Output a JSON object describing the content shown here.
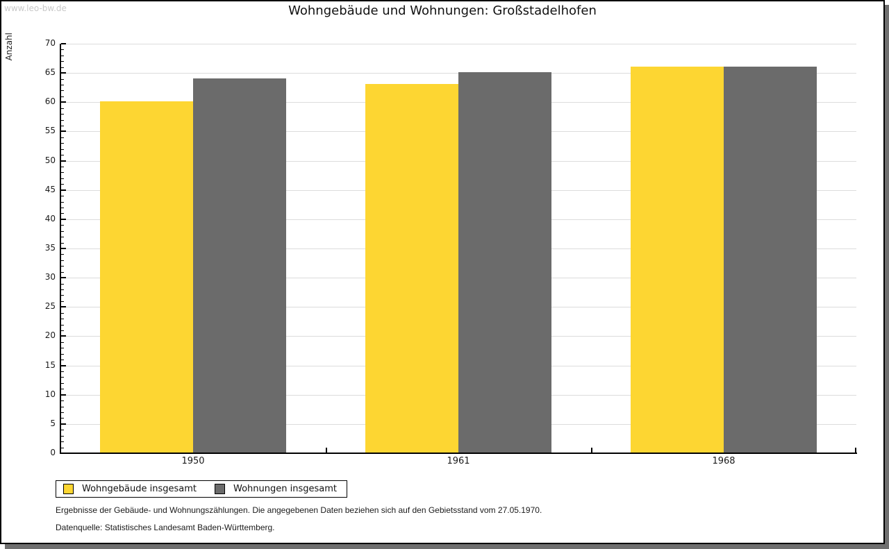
{
  "watermark": "www.leo-bw.de",
  "title": "Wohngebäude und Wohnungen: Großstadelhofen",
  "chart_data": {
    "type": "bar",
    "categories": [
      "1950",
      "1961",
      "1968"
    ],
    "series": [
      {
        "name": "Wohngebäude insgesamt",
        "color": "#FDD632",
        "values": [
          60,
          63,
          66
        ]
      },
      {
        "name": "Wohnungen insgesamt",
        "color": "#6B6B6B",
        "values": [
          64,
          65,
          66
        ]
      }
    ],
    "title": "Wohngebäude und Wohnungen: Großstadelhofen",
    "xlabel": "",
    "ylabel": "Anzahl",
    "ylim": [
      0,
      70
    ],
    "ytick_step": 5,
    "minor_tick_step": 1,
    "grid": true,
    "legend_position": "bottom-left",
    "gridline_color": "#DCDCDC"
  },
  "footnotes": [
    "Ergebnisse der Gebäude- und Wohnungszählungen. Die angegebenen Daten beziehen sich auf den Gebietsstand vom 27.05.1970.",
    "Datenquelle: Statistisches Landesamt Baden-Württemberg."
  ]
}
